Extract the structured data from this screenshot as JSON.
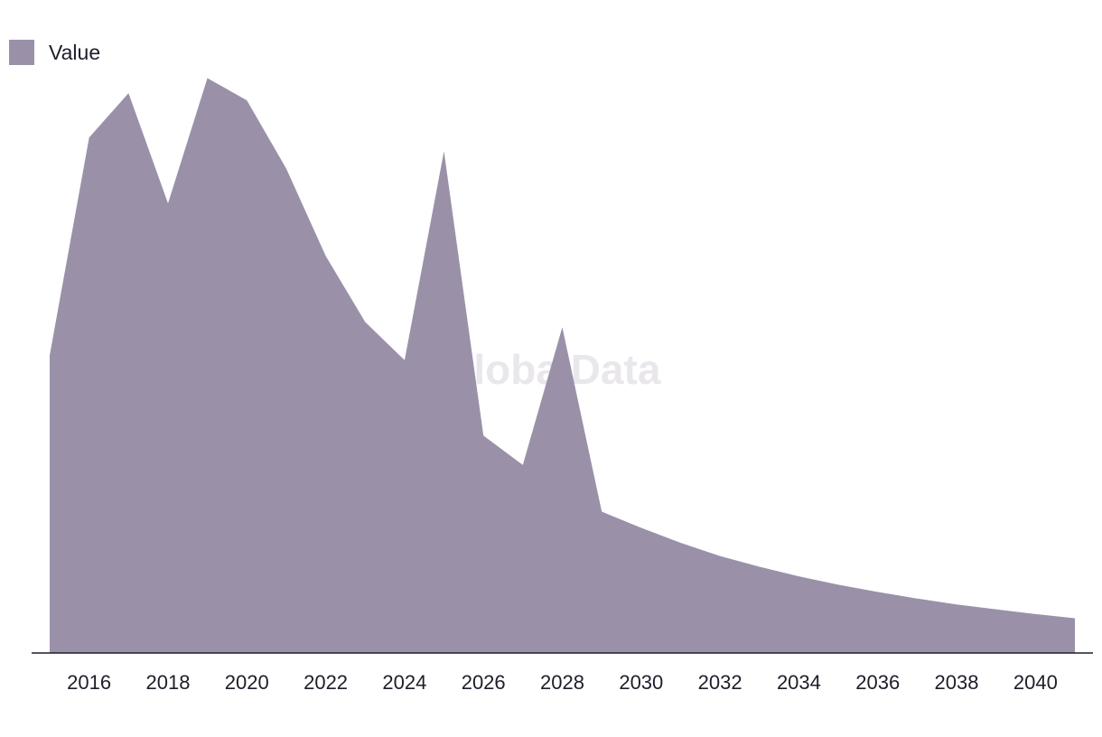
{
  "watermark": "GlobalData",
  "legend": {
    "label": "Value"
  },
  "colors": {
    "area": "#9a91a9",
    "axis": "#1f1d2b"
  },
  "chart_data": {
    "type": "area",
    "title": "",
    "xlabel": "",
    "ylabel": "",
    "legend_position": "top-left",
    "grid": false,
    "xlim": [
      2015,
      2041
    ],
    "ylim": [
      0,
      100
    ],
    "x_ticks": [
      2016,
      2018,
      2020,
      2022,
      2024,
      2026,
      2028,
      2030,
      2032,
      2034,
      2036,
      2038,
      2040
    ],
    "series": [
      {
        "name": "Value",
        "x": [
          2015,
          2016,
          2017,
          2018,
          2019,
          2020,
          2021,
          2022,
          2023,
          2024,
          2025,
          2026,
          2027,
          2028,
          2029,
          2030,
          2031,
          2032,
          2033,
          2034,
          2035,
          2036,
          2037,
          2038,
          2039,
          2040,
          2041
        ],
        "values": [
          49.7,
          86.1,
          93.5,
          75.1,
          96.0,
          92.3,
          80.9,
          66.3,
          55.3,
          48.9,
          83.8,
          36.3,
          31.4,
          54.4,
          23.6,
          20.9,
          18.4,
          16.2,
          14.4,
          12.8,
          11.4,
          10.2,
          9.1,
          8.1,
          7.3,
          6.5,
          5.8
        ]
      }
    ]
  }
}
